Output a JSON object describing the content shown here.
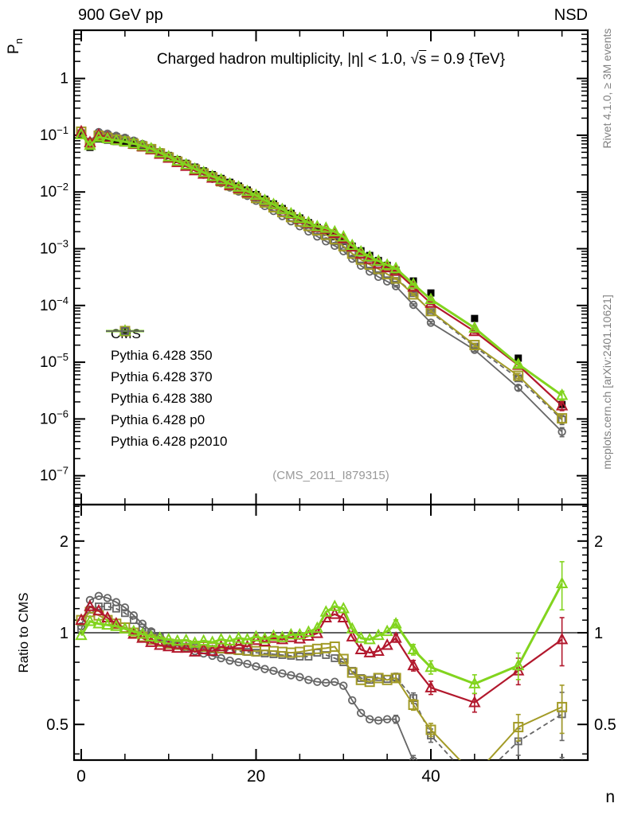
{
  "header": {
    "left": "900 GeV pp",
    "right": "NSD"
  },
  "labels": {
    "title_pre": "Charged hadron multiplicity, |η| < 1.0, √",
    "title_s": "s",
    "title_post": " = 0.9 {TeV}",
    "y_main_base": "P",
    "y_main_sub": "n",
    "y_ratio": "Ratio to CMS",
    "x": "n",
    "reference": "(CMS_2011_I879315)"
  },
  "side_notes": {
    "top_right": "Rivet 4.1.0, ≥ 3M events",
    "bottom_right": "mcplots.cern.ch [arXiv:2401.10621]"
  },
  "chart_data": {
    "type": "line",
    "title": "Charged hadron multiplicity, |η| < 1.0, √s = 0.9 {TeV}",
    "xlabel": "n",
    "ylabel_main": "P_n",
    "ylabel_ratio": "Ratio to CMS",
    "xlim": [
      -0.82,
      57.9
    ],
    "ylim_main": [
      3.2e-08,
      6.5
    ],
    "ylim_ratio": [
      0.382,
      2.63
    ],
    "xticks_major": [
      0,
      20,
      40
    ],
    "xtick_minor_step": 5,
    "yticks_main_exp": [
      0,
      -1,
      -2,
      -3,
      -4,
      -5,
      -6,
      -7
    ],
    "yticks_ratio": [
      2,
      1,
      0.5
    ],
    "ratio_minor_ticks": [
      0.4,
      0.6,
      0.7,
      0.8,
      0.9,
      1.1,
      1.2,
      1.3,
      1.4,
      1.5,
      1.6,
      1.7,
      1.8,
      1.9,
      2.1,
      2.2,
      2.3,
      2.4,
      2.5,
      2.6
    ],
    "legend_position": "middle-left",
    "grid": false,
    "x": [
      0,
      1,
      2,
      3,
      4,
      5,
      6,
      7,
      8,
      9,
      10,
      11,
      12,
      13,
      14,
      15,
      16,
      17,
      18,
      19,
      20,
      21,
      22,
      23,
      24,
      25,
      26,
      27,
      28,
      29,
      30,
      31,
      32,
      33,
      34,
      35,
      36,
      38,
      40,
      45,
      50,
      55
    ],
    "cms": {
      "name": "CMS",
      "color": "#000000",
      "marker": "square-filled",
      "P": [
        0.105,
        0.061,
        0.086,
        0.082,
        0.0775,
        0.0745,
        0.0705,
        0.0655,
        0.0598,
        0.051,
        0.044,
        0.0373,
        0.032,
        0.0274,
        0.0235,
        0.0202,
        0.0173,
        0.0148,
        0.0127,
        0.0108,
        0.009,
        0.00745,
        0.00617,
        0.00511,
        0.0042,
        0.00348,
        0.00288,
        0.00238,
        0.00197,
        0.00163,
        0.00135,
        0.00111,
        0.00092,
        0.00076,
        0.00062,
        0.00051,
        0.00042,
        0.00027,
        0.000166,
        5.9e-05,
        1.18e-05,
        1.8e-06
      ]
    },
    "series": [
      {
        "name": "Pythia 6.428 350",
        "color": "#a39b27",
        "marker": "square-open",
        "line": "solid",
        "line_width": 2,
        "ratio": [
          1.1,
          1.17,
          1.14,
          1.1,
          1.07,
          1.04,
          1.0,
          0.97,
          0.95,
          0.935,
          0.92,
          0.915,
          0.91,
          0.905,
          0.9,
          0.895,
          0.89,
          0.885,
          0.88,
          0.875,
          0.87,
          0.875,
          0.87,
          0.865,
          0.86,
          0.865,
          0.875,
          0.885,
          0.89,
          0.9,
          0.82,
          0.74,
          0.7,
          0.69,
          0.71,
          0.7,
          0.71,
          0.58,
          0.48,
          0.34,
          0.49,
          0.57
        ]
      },
      {
        "name": "Pythia 6.428 370",
        "color": "#b2182d",
        "marker": "triangle-open",
        "line": "solid",
        "line_width": 2.2,
        "ratio": [
          1.1,
          1.22,
          1.18,
          1.12,
          1.07,
          1.03,
          0.99,
          0.96,
          0.93,
          0.91,
          0.9,
          0.89,
          0.89,
          0.865,
          0.88,
          0.87,
          0.9,
          0.885,
          0.915,
          0.9,
          0.945,
          0.935,
          0.96,
          0.95,
          0.965,
          0.955,
          0.975,
          0.995,
          1.12,
          1.15,
          1.12,
          0.97,
          0.88,
          0.86,
          0.87,
          0.91,
          0.96,
          0.78,
          0.66,
          0.59,
          0.75,
          0.95
        ]
      },
      {
        "name": "Pythia 6.428 380",
        "color": "#82d41e",
        "marker": "triangle-open",
        "line": "solid",
        "line_width": 3,
        "ratio": [
          0.98,
          1.09,
          1.07,
          1.06,
          1.05,
          1.03,
          1.01,
          0.99,
          0.97,
          0.96,
          0.95,
          0.94,
          0.945,
          0.925,
          0.94,
          0.93,
          0.95,
          0.94,
          0.96,
          0.95,
          0.97,
          0.955,
          0.975,
          0.965,
          0.985,
          0.985,
          1.005,
          1.035,
          1.17,
          1.22,
          1.2,
          1.03,
          0.96,
          0.95,
          0.98,
          1.01,
          1.07,
          0.88,
          0.77,
          0.68,
          0.78,
          1.45
        ]
      },
      {
        "name": "Pythia 6.428 p0",
        "color": "#666666",
        "marker": "circle-open",
        "line": "solid",
        "line_width": 1.8,
        "ratio": [
          1.05,
          1.28,
          1.32,
          1.3,
          1.26,
          1.21,
          1.14,
          1.07,
          1.01,
          0.97,
          0.93,
          0.91,
          0.89,
          0.87,
          0.855,
          0.84,
          0.825,
          0.81,
          0.8,
          0.79,
          0.775,
          0.76,
          0.75,
          0.735,
          0.725,
          0.715,
          0.7,
          0.69,
          0.685,
          0.69,
          0.67,
          0.6,
          0.545,
          0.52,
          0.515,
          0.52,
          0.52,
          0.38,
          0.3,
          0.28,
          0.3,
          0.33
        ]
      },
      {
        "name": "Pythia 6.428 p2010",
        "color": "#666666",
        "marker": "square-open-small",
        "line": "dashed",
        "line_width": 1.8,
        "ratio": [
          1.03,
          1.19,
          1.22,
          1.22,
          1.2,
          1.16,
          1.1,
          1.04,
          1.0,
          0.965,
          0.915,
          0.905,
          0.9,
          0.895,
          0.89,
          0.885,
          0.88,
          0.875,
          0.87,
          0.865,
          0.86,
          0.855,
          0.85,
          0.845,
          0.84,
          0.835,
          0.835,
          0.86,
          0.845,
          0.825,
          0.8,
          0.75,
          0.71,
          0.7,
          0.715,
          0.705,
          0.715,
          0.61,
          0.46,
          0.32,
          0.44,
          0.54
        ]
      }
    ],
    "tail_rel_err": {
      "36": 0.03,
      "38": 0.04,
      "40": 0.05,
      "45": 0.07,
      "50": 0.1,
      "55": 0.18
    }
  }
}
